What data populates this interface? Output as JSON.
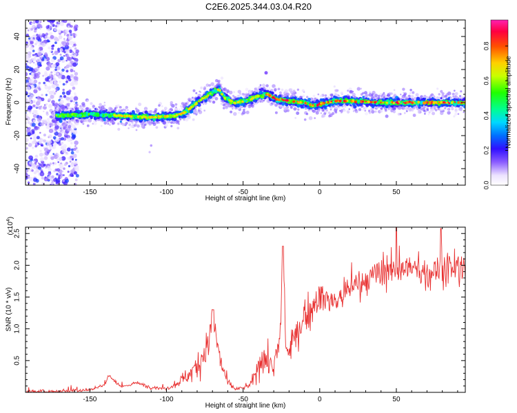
{
  "title": "C2E6.2025.344.03.04.R20",
  "chart_data": [
    {
      "type": "heatmap",
      "xlabel": "Height of straight line (km)",
      "ylabel": "Frequency (Hz)",
      "xlim": [
        -192,
        95
      ],
      "ylim": [
        -50,
        50
      ],
      "xticks": [
        -150,
        -100,
        -50,
        0,
        50
      ],
      "yticks": [
        -40,
        -20,
        0,
        20,
        40
      ],
      "colorbar": {
        "label": "Normalized spectral amplitude",
        "range": [
          0,
          0.95
        ],
        "ticks": [
          0.0,
          0.2,
          0.4,
          0.6,
          0.8
        ]
      },
      "ridge": {
        "x": [
          -170,
          -150,
          -130,
          -110,
          -95,
          -88,
          -80,
          -72,
          -66,
          -62,
          -56,
          -48,
          -40,
          -34,
          -28,
          -20,
          -10,
          -4,
          0,
          5,
          10,
          20,
          40,
          60,
          80,
          95
        ],
        "y": [
          -8,
          -7,
          -8,
          -9,
          -8,
          -6,
          0,
          5,
          8,
          3,
          0,
          1,
          4,
          5,
          2,
          1,
          0,
          -2,
          -1,
          0,
          1,
          1,
          0,
          0,
          0,
          0
        ]
      }
    },
    {
      "type": "line",
      "xlabel": "Height of straight line (km)",
      "ylabel": "SNR (10 * v/v)",
      "y_multiplier": "(x10",
      "y_multiplier_exp": "4",
      "y_multiplier_close": ")",
      "xlim": [
        -192,
        95
      ],
      "ylim": [
        0,
        2.6
      ],
      "xticks": [
        -150,
        -100,
        -50,
        0,
        50
      ],
      "yticks": [
        0.5,
        1.0,
        1.5,
        2.0,
        2.5
      ],
      "series": [
        {
          "color": "#e83030",
          "x": [
            -192,
            -170,
            -150,
            -140,
            -138,
            -130,
            -120,
            -110,
            -100,
            -95,
            -90,
            -85,
            -80,
            -76,
            -73,
            -70,
            -67,
            -65,
            -60,
            -55,
            -50,
            -45,
            -40,
            -37,
            -35,
            -30,
            -26,
            -24,
            -22,
            -20,
            -15,
            -10,
            -5,
            0,
            5,
            10,
            20,
            30,
            40,
            50,
            60,
            70,
            80,
            95
          ],
          "y": [
            0.01,
            0.02,
            0.04,
            0.12,
            0.28,
            0.08,
            0.15,
            0.08,
            0.06,
            0.12,
            0.2,
            0.28,
            0.42,
            0.6,
            0.75,
            1.05,
            0.8,
            0.5,
            0.15,
            0.05,
            0.07,
            0.12,
            0.4,
            0.62,
            0.5,
            0.4,
            0.8,
            2.2,
            0.7,
            0.6,
            0.9,
            1.2,
            1.3,
            1.45,
            1.5,
            1.4,
            1.65,
            1.75,
            1.85,
            1.95,
            1.95,
            1.85,
            1.95,
            1.9
          ]
        }
      ]
    }
  ]
}
